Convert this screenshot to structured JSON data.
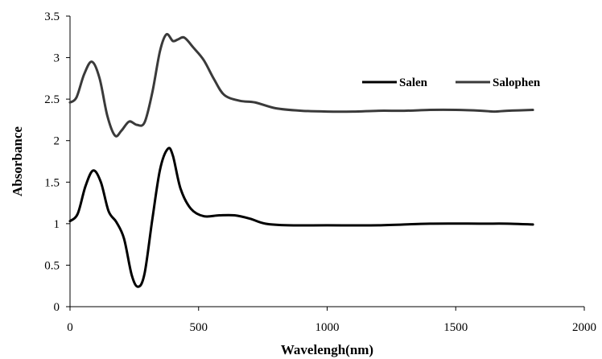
{
  "chart_data": {
    "type": "line",
    "xlabel": "Wavelengh(nm)",
    "ylabel": "Absorbance",
    "xlim": [
      0,
      2000
    ],
    "ylim": [
      0,
      3.5
    ],
    "xticks": [
      "0",
      "500",
      "1000",
      "1500",
      "2000"
    ],
    "yticks": [
      "0",
      "0.5",
      "1",
      "1.5",
      "2",
      "2.5",
      "3",
      "3.5"
    ],
    "grid": false,
    "legend_position": "top-right",
    "series": [
      {
        "name": "Salen",
        "color": "#000000",
        "points": [
          [
            0,
            1.03
          ],
          [
            30,
            1.12
          ],
          [
            60,
            1.45
          ],
          [
            90,
            1.64
          ],
          [
            120,
            1.5
          ],
          [
            150,
            1.15
          ],
          [
            180,
            1.02
          ],
          [
            210,
            0.82
          ],
          [
            240,
            0.38
          ],
          [
            265,
            0.24
          ],
          [
            290,
            0.4
          ],
          [
            320,
            1.05
          ],
          [
            350,
            1.65
          ],
          [
            380,
            1.9
          ],
          [
            400,
            1.82
          ],
          [
            430,
            1.42
          ],
          [
            470,
            1.18
          ],
          [
            520,
            1.09
          ],
          [
            580,
            1.1
          ],
          [
            640,
            1.1
          ],
          [
            700,
            1.06
          ],
          [
            760,
            1.0
          ],
          [
            850,
            0.98
          ],
          [
            1000,
            0.98
          ],
          [
            1200,
            0.98
          ],
          [
            1400,
            1.0
          ],
          [
            1600,
            1.0
          ],
          [
            1700,
            1.0
          ],
          [
            1800,
            0.99
          ]
        ]
      },
      {
        "name": "Salophen",
        "color": "#3a3a3a",
        "points": [
          [
            0,
            2.46
          ],
          [
            25,
            2.52
          ],
          [
            55,
            2.8
          ],
          [
            85,
            2.95
          ],
          [
            115,
            2.75
          ],
          [
            145,
            2.3
          ],
          [
            175,
            2.06
          ],
          [
            200,
            2.12
          ],
          [
            230,
            2.23
          ],
          [
            260,
            2.19
          ],
          [
            290,
            2.22
          ],
          [
            320,
            2.58
          ],
          [
            350,
            3.08
          ],
          [
            375,
            3.28
          ],
          [
            400,
            3.2
          ],
          [
            420,
            3.22
          ],
          [
            445,
            3.24
          ],
          [
            480,
            3.12
          ],
          [
            520,
            2.97
          ],
          [
            560,
            2.74
          ],
          [
            600,
            2.55
          ],
          [
            660,
            2.48
          ],
          [
            720,
            2.46
          ],
          [
            800,
            2.39
          ],
          [
            900,
            2.36
          ],
          [
            1000,
            2.35
          ],
          [
            1100,
            2.35
          ],
          [
            1200,
            2.36
          ],
          [
            1300,
            2.36
          ],
          [
            1400,
            2.37
          ],
          [
            1500,
            2.37
          ],
          [
            1600,
            2.36
          ],
          [
            1650,
            2.35
          ],
          [
            1700,
            2.36
          ],
          [
            1800,
            2.37
          ]
        ]
      }
    ]
  }
}
